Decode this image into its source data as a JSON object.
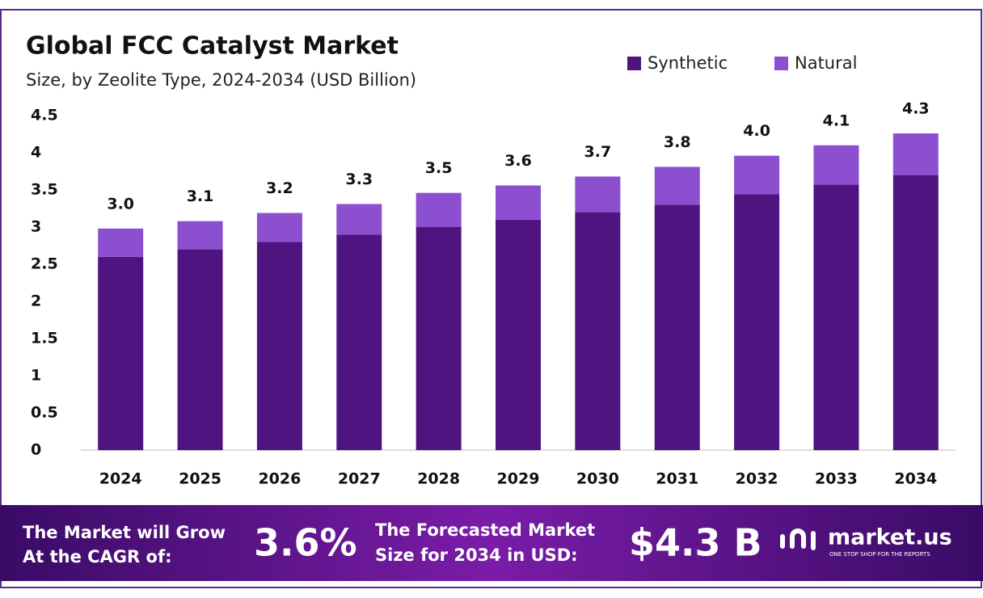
{
  "chart_data": {
    "type": "stacked-bar",
    "title": "Global FCC Catalyst Market",
    "subtitle": "Size, by Zeolite Type, 2024-2034 (USD Billion)",
    "categories": [
      "2024",
      "2025",
      "2026",
      "2027",
      "2028",
      "2029",
      "2030",
      "2031",
      "2032",
      "2033",
      "2034"
    ],
    "series": [
      {
        "name": "Synthetic",
        "color": "#4f1480",
        "values": [
          2.6,
          2.7,
          2.8,
          2.9,
          3.0,
          3.1,
          3.2,
          3.3,
          3.44,
          3.57,
          3.7
        ]
      },
      {
        "name": "Natural",
        "color": "#8c4fd0",
        "values": [
          0.38,
          0.38,
          0.39,
          0.41,
          0.46,
          0.46,
          0.48,
          0.51,
          0.52,
          0.53,
          0.56
        ]
      }
    ],
    "totals": {
      "values": [
        2.98,
        3.08,
        3.19,
        3.31,
        3.46,
        3.56,
        3.68,
        3.81,
        3.96,
        4.1,
        4.26
      ],
      "value_labels": [
        "3.0",
        "3.1",
        "3.2",
        "3.3",
        "3.5",
        "3.6",
        "3.7",
        "3.8",
        "4.0",
        "4.1",
        "4.3"
      ]
    },
    "ylim": [
      0,
      4.5
    ],
    "yticks": [
      0,
      0.5,
      1,
      1.5,
      2,
      2.5,
      3,
      3.5,
      4,
      4.5
    ],
    "grid": false,
    "legend": "top-right"
  },
  "footer": {
    "cagr_text": [
      "The Market will Grow",
      "At the CAGR of:"
    ],
    "cagr_value": "3.6%",
    "forecast_text": [
      "The Forecasted Market",
      "Size for 2034 in USD:"
    ],
    "forecast_value": "$4.3 B",
    "brand": "market.us",
    "tagline": "ONE STOP SHOP FOR THE REPORTS"
  }
}
